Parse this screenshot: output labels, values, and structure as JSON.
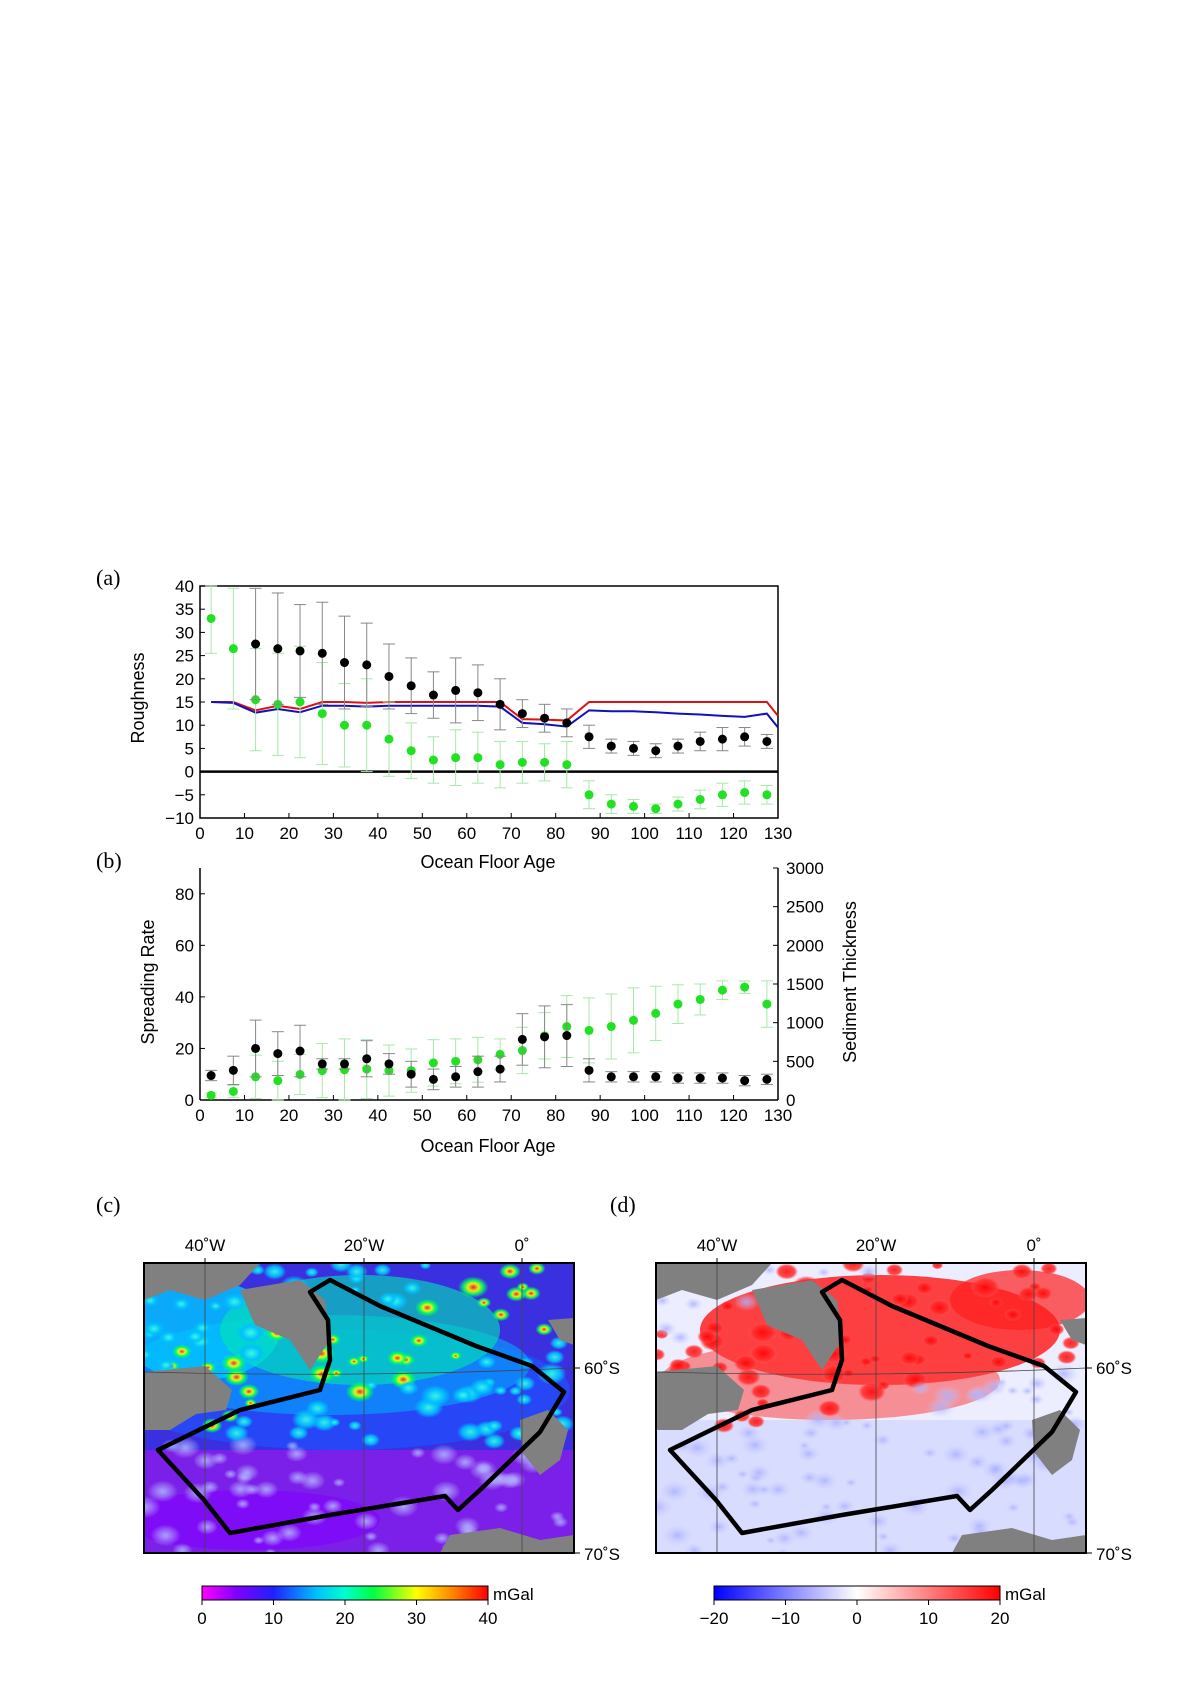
{
  "panel_labels": {
    "a": "(a)",
    "b": "(b)",
    "c": "(c)",
    "d": "(d)"
  },
  "colors": {
    "black_series": "#000000",
    "green_series": "#22e022",
    "black_err": "#888888",
    "green_err": "#a8e8a8",
    "red_line": "#dd1111",
    "blue_line": "#1111bb",
    "land": "#808080"
  },
  "chart_data": [
    {
      "type": "scatter",
      "panel": "a",
      "xlabel": "Ocean Floor Age",
      "ylabel": "Roughness",
      "xlim": [
        0,
        130
      ],
      "ylim": [
        -10,
        40
      ],
      "xticks": [
        "0",
        "10",
        "20",
        "30",
        "40",
        "50",
        "60",
        "70",
        "80",
        "90",
        "100",
        "110",
        "120",
        "130"
      ],
      "yticks": [
        "40",
        "35",
        "30",
        "25",
        "20",
        "15",
        "10",
        "5",
        "0",
        "−5",
        "−10"
      ],
      "zero_line": true,
      "series": [
        {
          "color": "#000000",
          "x": [
            12.5,
            17.5,
            22.5,
            27.5,
            32.5,
            37.5,
            42.5,
            47.5,
            52.5,
            57.5,
            62.5,
            67.5,
            72.5,
            77.5,
            82.5,
            87.5,
            92.5,
            97.5,
            102.5,
            107.5,
            112.5,
            117.5,
            122.5,
            127.5
          ],
          "y": [
            27.5,
            26.5,
            26,
            25.5,
            23.5,
            23,
            20.5,
            18.5,
            16.5,
            17.5,
            17,
            14.5,
            12.5,
            11.5,
            10.5,
            7.5,
            5.5,
            5,
            4.5,
            5.5,
            6.5,
            7,
            7.5,
            6.5
          ],
          "err": [
            12,
            12,
            10,
            11,
            10,
            9,
            7,
            6,
            5,
            7,
            6,
            5.5,
            3,
            3,
            3,
            2.5,
            1.5,
            1.5,
            1.5,
            1.5,
            2,
            2.5,
            2,
            1.5
          ]
        },
        {
          "color": "#22e022",
          "x": [
            2.5,
            7.5,
            12.5,
            17.5,
            22.5,
            27.5,
            32.5,
            37.5,
            42.5,
            47.5,
            52.5,
            57.5,
            62.5,
            67.5,
            72.5,
            77.5,
            82.5,
            87.5,
            92.5,
            97.5,
            102.5,
            107.5,
            112.5,
            117.5,
            122.5,
            127.5
          ],
          "y": [
            33,
            26.5,
            15.5,
            14.5,
            15,
            12.5,
            10,
            10,
            7,
            4.5,
            2.5,
            3,
            3,
            1.5,
            2,
            2,
            1.5,
            -5,
            -7,
            -7.5,
            -8,
            -7,
            -6,
            -5,
            -4.5,
            -5
          ],
          "err": [
            7.5,
            13,
            11,
            11,
            12,
            11,
            9,
            10,
            8,
            6,
            5,
            6,
            5.5,
            5,
            4.5,
            4,
            5,
            3,
            2,
            1.5,
            1,
            1.5,
            2,
            2.5,
            2.5,
            2
          ]
        }
      ],
      "lines": [
        {
          "color": "#dd1111",
          "x": [
            2.5,
            7.5,
            12.5,
            17.5,
            22.5,
            27.5,
            32.5,
            37.5,
            42.5,
            47.5,
            52.5,
            57.5,
            62.5,
            67.5,
            72.5,
            77.5,
            82.5,
            87.5,
            92.5,
            97.5,
            102.5,
            107.5,
            112.5,
            117.5,
            122.5,
            127.5,
            130
          ],
          "y": [
            15,
            15,
            13.2,
            14.2,
            13.5,
            15,
            15,
            14.8,
            15,
            15,
            15,
            15,
            15,
            15,
            11.3,
            11.2,
            11,
            15,
            15,
            15,
            15,
            15,
            15,
            15,
            15,
            15,
            12
          ]
        },
        {
          "color": "#1111bb",
          "x": [
            2.5,
            7.5,
            12.5,
            17.5,
            22.5,
            27.5,
            32.5,
            37.5,
            42.5,
            47.5,
            52.5,
            57.5,
            62.5,
            67.5,
            72.5,
            77.5,
            82.5,
            87.5,
            92.5,
            97.5,
            102.5,
            107.5,
            112.5,
            117.5,
            122.5,
            127.5,
            130
          ],
          "y": [
            15,
            14.8,
            12.7,
            13.5,
            12.8,
            14.2,
            14.2,
            14,
            14.2,
            14.2,
            14.2,
            14.2,
            14.2,
            14,
            10.5,
            10.2,
            9.7,
            13.2,
            13,
            13,
            12.8,
            12.5,
            12.3,
            12,
            11.8,
            12.5,
            9.5
          ]
        }
      ]
    },
    {
      "type": "scatter",
      "panel": "b",
      "xlabel": "Ocean Floor Age",
      "ylabel": "Spreading Rate",
      "y2label": "Sediment Thickness",
      "xlim": [
        0,
        130
      ],
      "ylim": [
        0,
        90
      ],
      "y2lim": [
        0,
        3000
      ],
      "xticks": [
        "0",
        "10",
        "20",
        "30",
        "40",
        "50",
        "60",
        "70",
        "80",
        "90",
        "100",
        "110",
        "120",
        "130"
      ],
      "yticks": [
        "80",
        "60",
        "40",
        "20",
        "0"
      ],
      "y2ticks": [
        "3000",
        "2500",
        "2000",
        "1500",
        "1000",
        "500",
        "0"
      ],
      "series": [
        {
          "axis": "left",
          "color": "#000000",
          "x": [
            2.5,
            7.5,
            12.5,
            17.5,
            22.5,
            27.5,
            32.5,
            37.5,
            42.5,
            47.5,
            52.5,
            57.5,
            62.5,
            67.5,
            72.5,
            77.5,
            82.5,
            87.5,
            92.5,
            97.5,
            102.5,
            107.5,
            112.5,
            117.5,
            122.5,
            127.5
          ],
          "y": [
            9.5,
            11.5,
            20,
            18,
            19,
            14,
            14,
            16,
            14,
            10,
            8,
            9,
            11,
            12,
            23.5,
            24.5,
            25,
            11.5,
            9,
            9,
            9,
            8.5,
            8.5,
            8.5,
            7.5,
            8
          ],
          "err": [
            2,
            5.5,
            11,
            8.5,
            10,
            2,
            2,
            7,
            4,
            5,
            4,
            4,
            6,
            5,
            10,
            12,
            12,
            4.5,
            2,
            2,
            2,
            2,
            2,
            2,
            2,
            2
          ]
        },
        {
          "axis": "right",
          "color": "#22e022",
          "x": [
            2.5,
            7.5,
            12.5,
            17.5,
            22.5,
            27.5,
            32.5,
            37.5,
            42.5,
            47.5,
            52.5,
            57.5,
            62.5,
            67.5,
            72.5,
            77.5,
            82.5,
            87.5,
            92.5,
            97.5,
            102.5,
            107.5,
            112.5,
            117.5,
            122.5,
            127.5
          ],
          "y": [
            60,
            110,
            300,
            250,
            330,
            380,
            390,
            400,
            380,
            380,
            480,
            500,
            520,
            590,
            640,
            830,
            950,
            900,
            950,
            1030,
            1120,
            1240,
            1300,
            1420,
            1460,
            1240
          ],
          "err": [
            30,
            80,
            280,
            250,
            260,
            350,
            400,
            380,
            330,
            280,
            300,
            290,
            290,
            200,
            300,
            300,
            400,
            420,
            420,
            420,
            350,
            250,
            200,
            120,
            80,
            300
          ]
        }
      ]
    }
  ],
  "map_c": {
    "lon_labels": [
      "40˚W",
      "20˚W",
      "0˚"
    ],
    "lat_labels": [
      "60˚S",
      "70˚S"
    ],
    "colorbar_ticks": [
      "0",
      "10",
      "20",
      "30",
      "40"
    ],
    "colorbar_unit": "mGal"
  },
  "map_d": {
    "lon_labels": [
      "40˚W",
      "20˚W",
      "0˚"
    ],
    "lat_labels": [
      "60˚S",
      "70˚S"
    ],
    "colorbar_ticks": [
      "−20",
      "−10",
      "0",
      "10",
      "20"
    ],
    "colorbar_unit": "mGal"
  }
}
